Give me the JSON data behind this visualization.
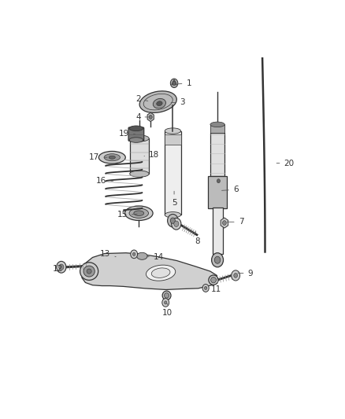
{
  "bg_color": "#ffffff",
  "line_color": "#333333",
  "label_color": "#333333",
  "label_fontsize": 7.5,
  "labels": [
    [
      1,
      0.495,
      0.895,
      0.545,
      0.898
    ],
    [
      2,
      0.4,
      0.842,
      0.355,
      0.848
    ],
    [
      3,
      0.47,
      0.838,
      0.52,
      0.838
    ],
    [
      4,
      0.402,
      0.793,
      0.355,
      0.793
    ],
    [
      5,
      0.49,
      0.57,
      0.49,
      0.528
    ],
    [
      6,
      0.66,
      0.565,
      0.72,
      0.568
    ],
    [
      7,
      0.68,
      0.468,
      0.74,
      0.468
    ],
    [
      8,
      0.57,
      0.438,
      0.578,
      0.408
    ],
    [
      9,
      0.72,
      0.31,
      0.775,
      0.308
    ],
    [
      10,
      0.465,
      0.215,
      0.465,
      0.186
    ],
    [
      11,
      0.61,
      0.265,
      0.648,
      0.258
    ],
    [
      12,
      0.095,
      0.328,
      0.055,
      0.322
    ],
    [
      13,
      0.28,
      0.358,
      0.233,
      0.37
    ],
    [
      14,
      0.388,
      0.36,
      0.432,
      0.36
    ],
    [
      15,
      0.36,
      0.492,
      0.296,
      0.49
    ],
    [
      16,
      0.27,
      0.595,
      0.218,
      0.595
    ],
    [
      17,
      0.248,
      0.668,
      0.192,
      0.668
    ],
    [
      18,
      0.378,
      0.672,
      0.415,
      0.675
    ],
    [
      19,
      0.352,
      0.74,
      0.302,
      0.742
    ],
    [
      20,
      0.865,
      0.65,
      0.92,
      0.65
    ]
  ]
}
